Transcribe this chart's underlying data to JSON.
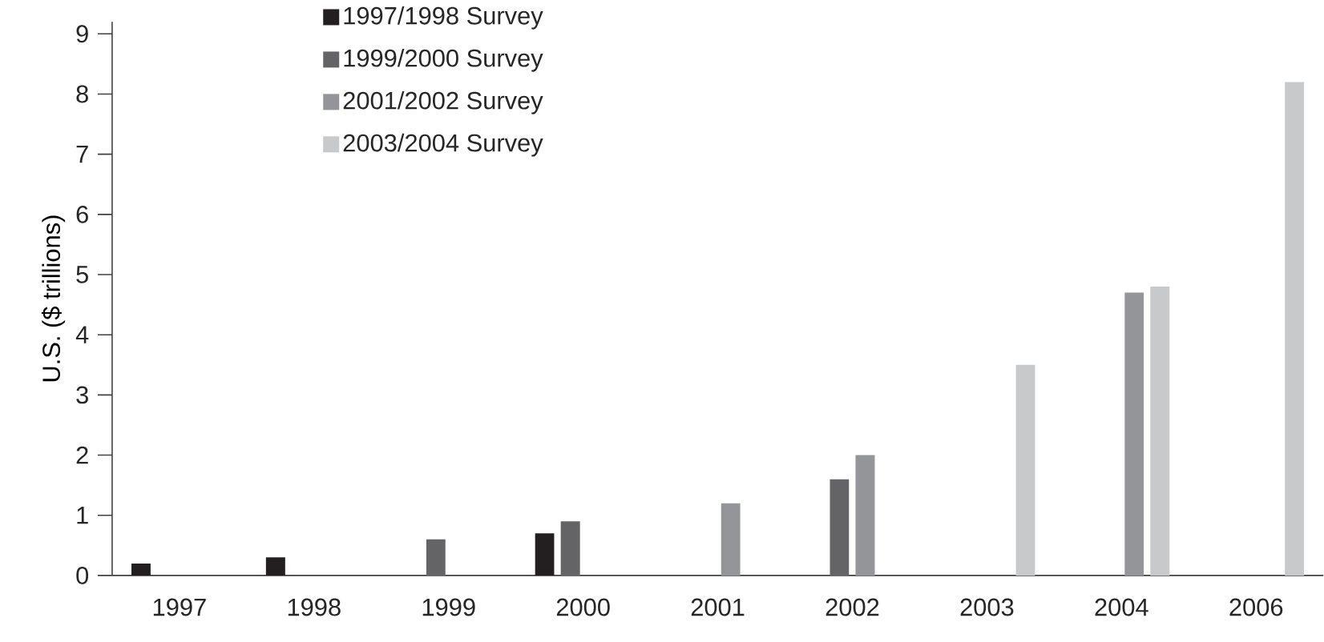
{
  "chart_data": {
    "type": "bar",
    "ylabel": "U.S. ($ trillions)",
    "categories": [
      "1997",
      "1998",
      "1999",
      "2000",
      "2001",
      "2002",
      "2003",
      "2004",
      "2006"
    ],
    "series": [
      {
        "name": "1997/1998 Survey",
        "color": "#231f20",
        "values": [
          0.2,
          0.3,
          null,
          0.7,
          null,
          null,
          null,
          null,
          null
        ]
      },
      {
        "name": "1999/2000 Survey",
        "color": "#646466",
        "values": [
          null,
          null,
          0.6,
          0.9,
          null,
          1.6,
          null,
          null,
          null
        ]
      },
      {
        "name": "2001/2002 Survey",
        "color": "#949598",
        "values": [
          null,
          null,
          null,
          null,
          1.2,
          2.0,
          null,
          4.7,
          null
        ]
      },
      {
        "name": "2003/2004 Survey",
        "color": "#c8c9ca",
        "values": [
          null,
          null,
          null,
          null,
          null,
          null,
          3.5,
          4.8,
          8.2
        ]
      }
    ],
    "ylim": [
      0,
      9.2
    ],
    "yticks": [
      0,
      1,
      2,
      3,
      4,
      5,
      6,
      7,
      8,
      9
    ],
    "legend": "top left",
    "grid": false
  }
}
